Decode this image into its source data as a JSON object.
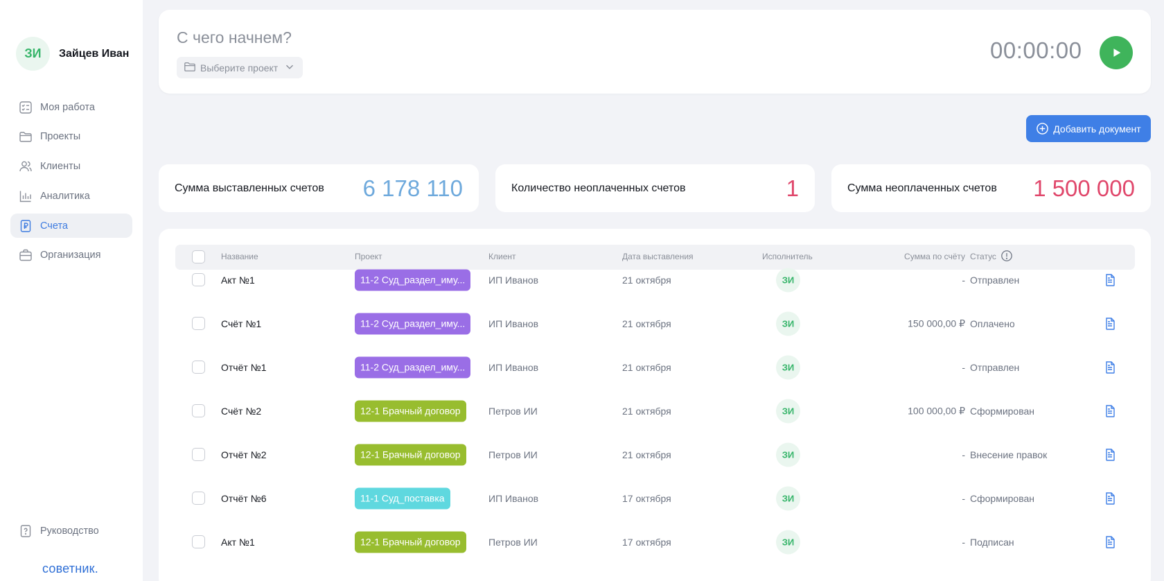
{
  "user": {
    "initials": "ЗИ",
    "name": "Зайцев Иван"
  },
  "sidebar": {
    "items": [
      {
        "label": "Моя работа",
        "icon": "checklist-icon"
      },
      {
        "label": "Проекты",
        "icon": "folder-icon"
      },
      {
        "label": "Клиенты",
        "icon": "users-icon"
      },
      {
        "label": "Аналитика",
        "icon": "chart-icon"
      },
      {
        "label": "Счета",
        "icon": "invoice-icon",
        "active": true
      },
      {
        "label": "Организация",
        "icon": "briefcase-icon"
      }
    ],
    "help_label": "Руководство",
    "brand": "советник."
  },
  "tracker": {
    "prompt": "С чего начнем?",
    "project_placeholder": "Выберите проект",
    "time": "00:00:00"
  },
  "actions": {
    "add_document": "Добавить документ"
  },
  "stats": {
    "issued_label": "Сумма выставленных счетов",
    "issued_value": "6 178 110",
    "unpaid_count_label": "Количество неоплаченных счетов",
    "unpaid_count_value": "1",
    "unpaid_sum_label": "Сумма неоплаченных счетов",
    "unpaid_sum_value": "1 500 000"
  },
  "table": {
    "columns": {
      "name": "Название",
      "project": "Проект",
      "client": "Клиент",
      "date": "Дата выставления",
      "executor": "Исполнитель",
      "sum": "Сумма по счёту",
      "status": "Статус"
    },
    "rows": [
      {
        "name": "Акт №1",
        "project": "11-2 Суд_раздел_иму...",
        "project_color": "#9a6ee6",
        "client": "ИП Иванов",
        "date": "21 октября",
        "executor": "ЗИ",
        "sum": "-",
        "status": "Отправлен"
      },
      {
        "name": "Счёт №1",
        "project": "11-2 Суд_раздел_иму...",
        "project_color": "#9a6ee6",
        "client": "ИП Иванов",
        "date": "21 октября",
        "executor": "ЗИ",
        "sum": "150 000,00 ₽",
        "status": "Оплачено"
      },
      {
        "name": "Отчёт №1",
        "project": "11-2 Суд_раздел_иму...",
        "project_color": "#9a6ee6",
        "client": "ИП Иванов",
        "date": "21 октября",
        "executor": "ЗИ",
        "sum": "-",
        "status": "Отправлен"
      },
      {
        "name": "Счёт №2",
        "project": "12-1 Брачный договор",
        "project_color": "#98bd2f",
        "client": "Петров ИИ",
        "date": "21 октября",
        "executor": "ЗИ",
        "sum": "100 000,00 ₽",
        "status": "Сформирован"
      },
      {
        "name": "Отчёт №2",
        "project": "12-1 Брачный договор",
        "project_color": "#98bd2f",
        "client": "Петров ИИ",
        "date": "21 октября",
        "executor": "ЗИ",
        "sum": "-",
        "status": "Внесение правок"
      },
      {
        "name": "Отчёт №6",
        "project": "11-1 Суд_поставка",
        "project_color": "#5fd8df",
        "client": "ИП Иванов",
        "date": "17 октября",
        "executor": "ЗИ",
        "sum": "-",
        "status": "Сформирован"
      },
      {
        "name": "Акт №1",
        "project": "12-1 Брачный договор",
        "project_color": "#98bd2f",
        "client": "Петров ИИ",
        "date": "17 октября",
        "executor": "ЗИ",
        "sum": "-",
        "status": "Подписан"
      }
    ]
  },
  "colors": {
    "accent": "#3f7fe6",
    "play": "#3fb45b",
    "stat_blue": "#6ea9dc",
    "stat_red": "#e0476b"
  }
}
